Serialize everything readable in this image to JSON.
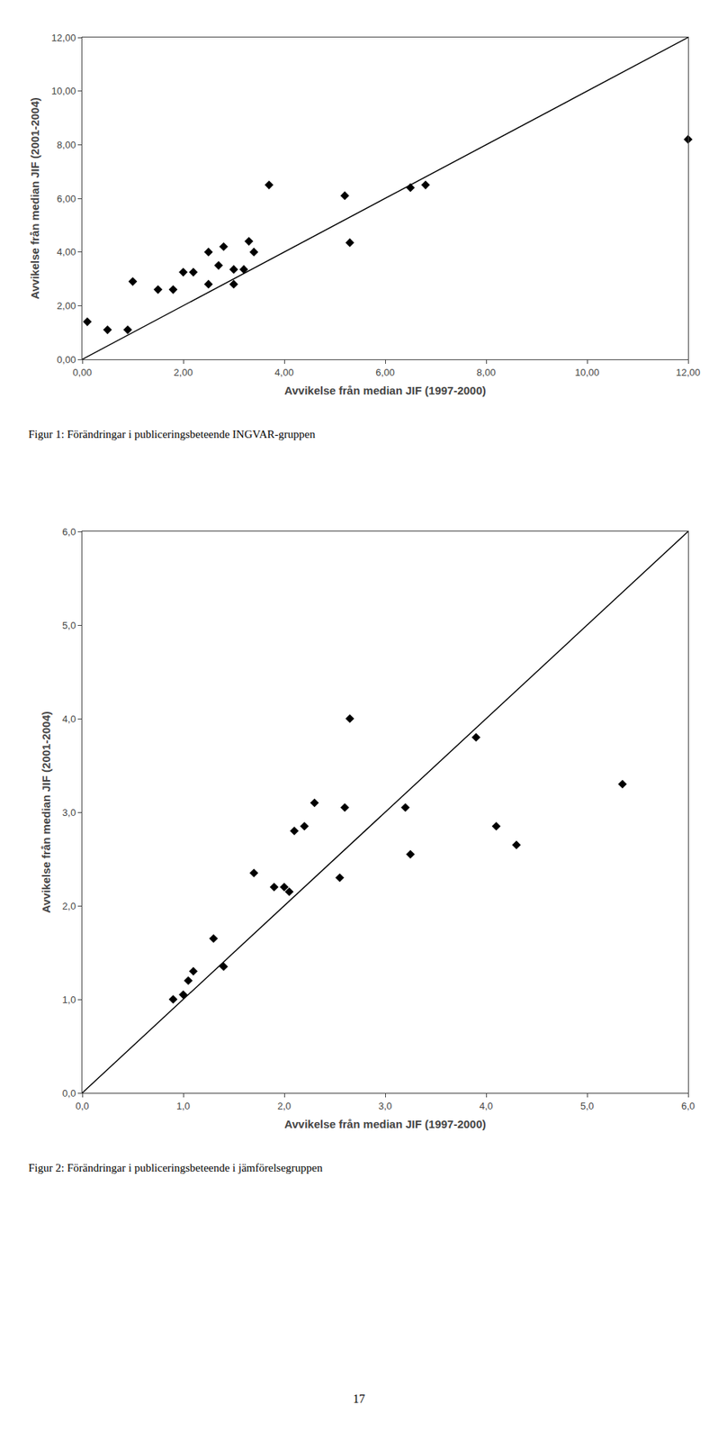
{
  "chart_data": [
    {
      "type": "scatter",
      "xlabel": "Avvikelse från median JIF (1997-2000)",
      "ylabel": "Avvikelse från median JIF (2001-2004)",
      "caption": "Figur 1: Förändringar i publiceringsbeteende INGVAR-gruppen",
      "xlim": [
        0.0,
        12.0
      ],
      "ylim": [
        0.0,
        12.0
      ],
      "xticks": [
        {
          "value": 0.0,
          "label": "0,00"
        },
        {
          "value": 2.0,
          "label": "2,00"
        },
        {
          "value": 4.0,
          "label": "4,00"
        },
        {
          "value": 6.0,
          "label": "6,00"
        },
        {
          "value": 8.0,
          "label": "8,00"
        },
        {
          "value": 10.0,
          "label": "10,00"
        },
        {
          "value": 12.0,
          "label": "12,00"
        }
      ],
      "yticks": [
        {
          "value": 0.0,
          "label": "0,00"
        },
        {
          "value": 2.0,
          "label": "2,00"
        },
        {
          "value": 4.0,
          "label": "4,00"
        },
        {
          "value": 6.0,
          "label": "6,00"
        },
        {
          "value": 8.0,
          "label": "8,00"
        },
        {
          "value": 10.0,
          "label": "10,00"
        },
        {
          "value": 12.0,
          "label": "12,00"
        }
      ],
      "grid": false,
      "series": [
        {
          "type": "scatter",
          "marker": "diamond",
          "color": "black",
          "x": [
            0.1,
            0.5,
            0.9,
            1.0,
            1.5,
            1.8,
            2.0,
            2.2,
            2.5,
            2.5,
            2.7,
            2.8,
            3.0,
            3.0,
            3.2,
            3.3,
            3.4,
            3.7,
            5.2,
            5.3,
            6.5,
            6.8,
            12.0
          ],
          "values": [
            1.4,
            1.1,
            1.1,
            2.9,
            2.6,
            2.6,
            3.25,
            3.25,
            2.8,
            4.0,
            3.5,
            4.2,
            2.8,
            3.35,
            3.35,
            4.4,
            4.0,
            6.5,
            6.1,
            4.35,
            6.4,
            6.5,
            8.2
          ]
        },
        {
          "type": "line",
          "line_style": "solid",
          "color": "black",
          "x": [
            0.0,
            12.0
          ],
          "values": [
            0.0,
            12.0
          ]
        }
      ]
    },
    {
      "type": "scatter",
      "xlabel": "Avvikelse från median JIF (1997-2000)",
      "ylabel": "Avvikelse från median JIF (2001-2004)",
      "caption": "Figur 2: Förändringar i publiceringsbeteende i jämförelsegruppen",
      "xlim": [
        0.0,
        6.0
      ],
      "ylim": [
        0.0,
        6.0
      ],
      "xticks": [
        {
          "value": 0.0,
          "label": "0,0"
        },
        {
          "value": 1.0,
          "label": "1,0"
        },
        {
          "value": 2.0,
          "label": "2,0"
        },
        {
          "value": 3.0,
          "label": "3,0"
        },
        {
          "value": 4.0,
          "label": "4,0"
        },
        {
          "value": 5.0,
          "label": "5,0"
        },
        {
          "value": 6.0,
          "label": "6,0"
        }
      ],
      "yticks": [
        {
          "value": 0.0,
          "label": "0,0"
        },
        {
          "value": 1.0,
          "label": "1,0"
        },
        {
          "value": 2.0,
          "label": "2,0"
        },
        {
          "value": 3.0,
          "label": "3,0"
        },
        {
          "value": 4.0,
          "label": "4,0"
        },
        {
          "value": 5.0,
          "label": "5,0"
        },
        {
          "value": 6.0,
          "label": "6,0"
        }
      ],
      "grid": false,
      "series": [
        {
          "type": "scatter",
          "marker": "diamond",
          "color": "black",
          "x": [
            0.9,
            1.0,
            1.05,
            1.1,
            1.3,
            1.4,
            1.7,
            1.9,
            2.0,
            2.05,
            2.1,
            2.2,
            2.3,
            2.55,
            2.6,
            2.65,
            3.2,
            3.25,
            3.9,
            4.1,
            4.3,
            5.35
          ],
          "values": [
            1.0,
            1.05,
            1.2,
            1.3,
            1.65,
            1.35,
            2.35,
            2.2,
            2.2,
            2.15,
            2.8,
            2.85,
            3.1,
            2.3,
            3.05,
            4.0,
            3.05,
            2.55,
            3.8,
            2.85,
            2.65,
            3.3
          ]
        },
        {
          "type": "line",
          "line_style": "solid",
          "color": "black",
          "x": [
            0.0,
            6.0
          ],
          "values": [
            0.0,
            6.0
          ]
        }
      ]
    }
  ],
  "page_number": "17"
}
